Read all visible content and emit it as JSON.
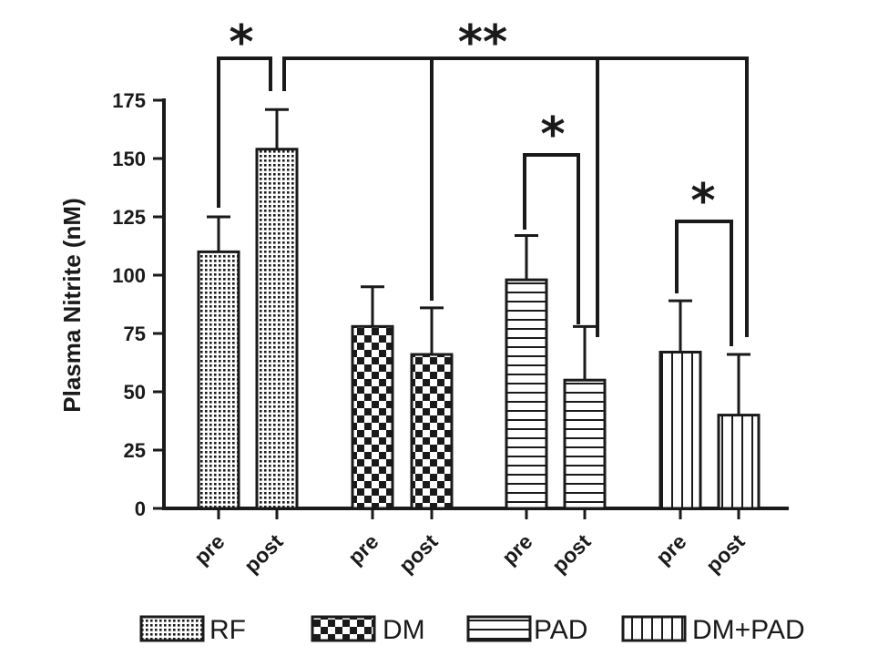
{
  "chart_data": {
    "type": "bar",
    "ylabel": "Plasma Nitrite (nM)",
    "ylim": [
      0,
      175
    ],
    "yticks": [
      0,
      25,
      50,
      75,
      100,
      125,
      150,
      175
    ],
    "categories": [
      "pre",
      "post",
      "pre",
      "post",
      "pre",
      "post",
      "pre",
      "post"
    ],
    "groups": [
      "RF",
      "RF",
      "DM",
      "DM",
      "PAD",
      "PAD",
      "DM+PAD",
      "DM+PAD"
    ],
    "values": [
      110,
      154,
      78,
      66,
      98,
      55,
      67,
      40
    ],
    "error_upper": [
      125,
      171,
      95,
      86,
      117,
      78,
      89,
      66
    ],
    "legend": [
      "RF",
      "DM",
      "PAD",
      "DM+PAD"
    ],
    "legend_position": "bottom",
    "grid": false,
    "annotations": {
      "rf_pre_post": "*",
      "rf_post_vs_all_post": "**",
      "pad_pre_post": "*",
      "dmpad_pre_post": "*"
    },
    "colors": {
      "ink": "#1a1a1a",
      "fill": "#ffffff"
    }
  }
}
